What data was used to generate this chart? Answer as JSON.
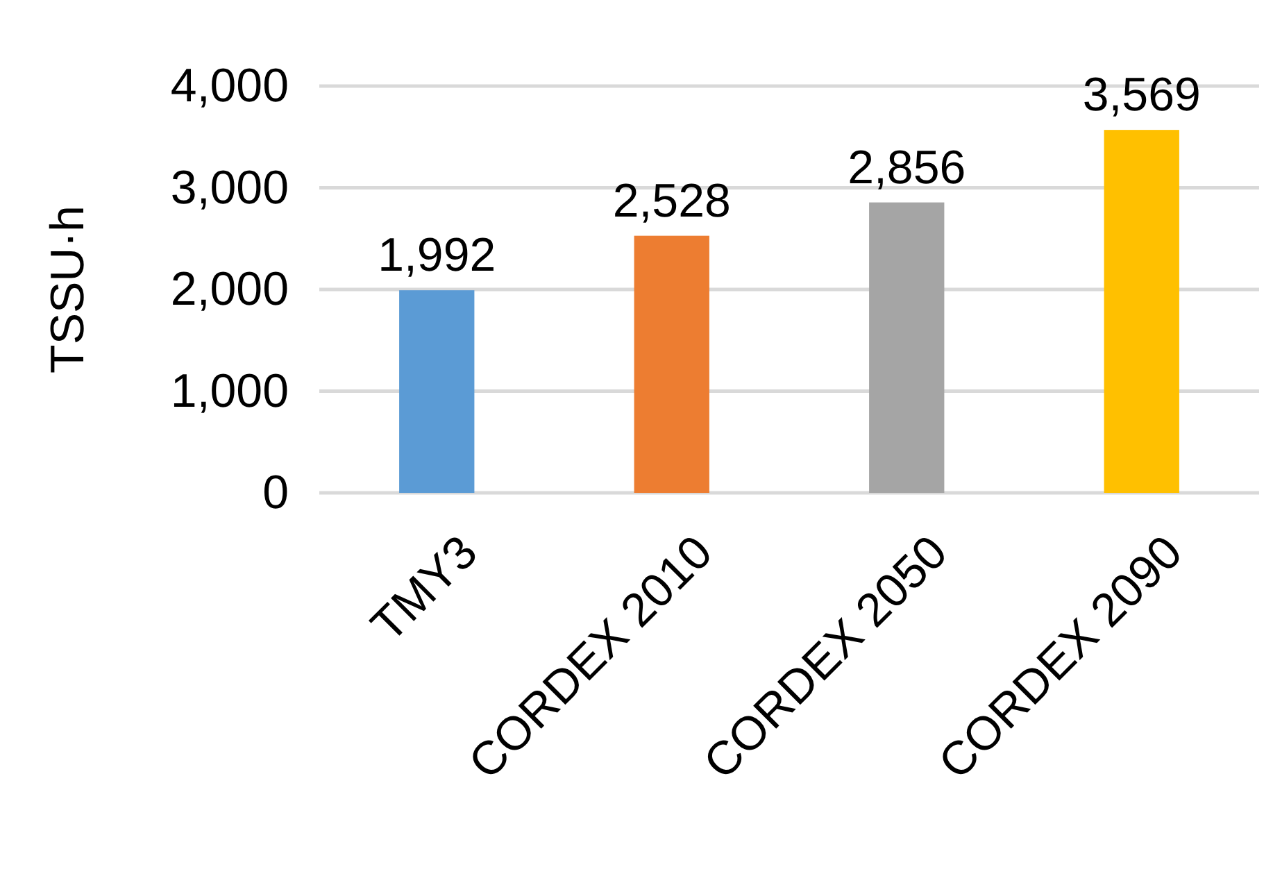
{
  "chart_data": {
    "type": "bar",
    "ylabel": "TSSU·h",
    "categories": [
      "TMY3",
      "CORDEX 2010",
      "CORDEX 2050",
      "CORDEX 2090"
    ],
    "values": [
      1992,
      2528,
      2856,
      3569
    ],
    "colors": [
      "#5b9bd5",
      "#ed7d31",
      "#a5a5a5",
      "#ffc000"
    ],
    "ylim": [
      0,
      4000
    ],
    "yticks": [
      {
        "value": 0,
        "label": "0"
      },
      {
        "value": 1000,
        "label": "1,000"
      },
      {
        "value": 2000,
        "label": "2,000"
      },
      {
        "value": 3000,
        "label": "3,000"
      },
      {
        "value": 4000,
        "label": "4,000"
      }
    ],
    "value_labels": [
      "1,992",
      "2,528",
      "2,856",
      "3,569"
    ],
    "grid": true
  }
}
